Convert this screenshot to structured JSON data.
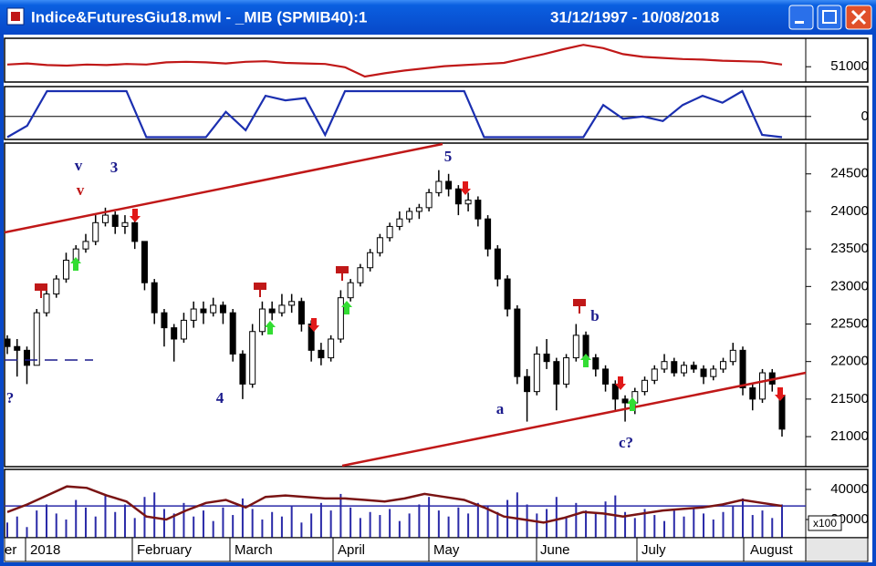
{
  "window": {
    "title": "Indice&FuturesGiu18.mwl - _MIB (SPMIB40):1",
    "date_range": "31/12/1997 - 10/08/2018"
  },
  "date_axis": [
    "er",
    "2018",
    "February",
    "March",
    "April",
    "May",
    "June",
    "July",
    "August"
  ],
  "chart_data": [
    {
      "type": "line",
      "color": "#c01818",
      "ylim": [
        48200,
        56200
      ],
      "yticks": [
        51000
      ],
      "values": [
        51400,
        51600,
        51300,
        51200,
        51400,
        51300,
        51500,
        51400,
        51800,
        51900,
        51800,
        51600,
        51900,
        52000,
        51700,
        51600,
        51500,
        50900,
        49200,
        49800,
        50300,
        50700,
        51100,
        51300,
        51500,
        51700,
        52500,
        53300,
        54200,
        55000,
        54400,
        53300,
        52800,
        52600,
        52400,
        52300,
        52100,
        52000,
        51900,
        51400
      ]
    },
    {
      "type": "line",
      "color": "#1b2fb0",
      "ylim": [
        -1,
        1.3
      ],
      "yticks": [
        0
      ],
      "grid": true,
      "values": [
        -0.9,
        -0.4,
        1.1,
        1.1,
        1.1,
        1.1,
        1.1,
        -0.9,
        -0.9,
        -0.9,
        -0.9,
        0.2,
        -0.6,
        0.9,
        0.7,
        0.8,
        -0.8,
        1.1,
        1.1,
        1.1,
        1.1,
        1.1,
        1.1,
        1.1,
        -0.9,
        -0.9,
        -0.9,
        -0.9,
        -0.9,
        -0.9,
        0.5,
        -0.1,
        0.0,
        -0.2,
        0.5,
        0.9,
        0.6,
        1.1,
        -0.8,
        -0.9
      ]
    },
    {
      "type": "candlestick",
      "ylim": [
        20600,
        24910
      ],
      "yticks": [
        24500,
        24000,
        23500,
        23000,
        22500,
        22000,
        21500,
        21000
      ],
      "candles": [
        [
          22300,
          22350,
          22100,
          22200
        ],
        [
          22200,
          22300,
          21800,
          22150
        ],
        [
          22150,
          22200,
          21700,
          21950
        ],
        [
          21950,
          22700,
          21950,
          22650
        ],
        [
          22650,
          22950,
          22600,
          22900
        ],
        [
          22900,
          23150,
          22850,
          23100
        ],
        [
          23100,
          23450,
          23050,
          23350
        ],
        [
          23350,
          23550,
          23300,
          23500
        ],
        [
          23500,
          23700,
          23450,
          23600
        ],
        [
          23600,
          23950,
          23550,
          23850
        ],
        [
          23850,
          24050,
          23800,
          23950
        ],
        [
          23950,
          24000,
          23700,
          23800
        ],
        [
          23800,
          23950,
          23700,
          23850
        ],
        [
          23850,
          23900,
          23500,
          23600
        ],
        [
          23600,
          23600,
          22950,
          23050
        ],
        [
          23050,
          23100,
          22500,
          22650
        ],
        [
          22650,
          22700,
          22200,
          22450
        ],
        [
          22450,
          22500,
          22000,
          22300
        ],
        [
          22300,
          22650,
          22250,
          22550
        ],
        [
          22550,
          22800,
          22450,
          22700
        ],
        [
          22700,
          22800,
          22500,
          22650
        ],
        [
          22650,
          22850,
          22600,
          22750
        ],
        [
          22750,
          22800,
          22500,
          22650
        ],
        [
          22650,
          22700,
          22000,
          22100
        ],
        [
          22100,
          22150,
          21500,
          21700
        ],
        [
          21700,
          22500,
          21650,
          22400
        ],
        [
          22400,
          22800,
          22350,
          22700
        ],
        [
          22700,
          22800,
          22550,
          22650
        ],
        [
          22650,
          22900,
          22600,
          22750
        ],
        [
          22750,
          22900,
          22650,
          22800
        ],
        [
          22800,
          22850,
          22400,
          22500
        ],
        [
          22500,
          22550,
          22000,
          22150
        ],
        [
          22150,
          22250,
          21950,
          22050
        ],
        [
          22050,
          22350,
          22000,
          22300
        ],
        [
          22300,
          22950,
          22250,
          22850
        ],
        [
          22850,
          23100,
          22800,
          23050
        ],
        [
          23050,
          23300,
          23000,
          23250
        ],
        [
          23250,
          23500,
          23200,
          23450
        ],
        [
          23450,
          23700,
          23400,
          23650
        ],
        [
          23650,
          23850,
          23600,
          23800
        ],
        [
          23800,
          24000,
          23750,
          23900
        ],
        [
          23900,
          24050,
          23850,
          24000
        ],
        [
          24000,
          24100,
          23900,
          24050
        ],
        [
          24050,
          24300,
          24000,
          24250
        ],
        [
          24250,
          24550,
          24200,
          24400
        ],
        [
          24400,
          24500,
          24200,
          24300
        ],
        [
          24300,
          24350,
          23950,
          24100
        ],
        [
          24100,
          24250,
          24000,
          24150
        ],
        [
          24150,
          24200,
          23800,
          23900
        ],
        [
          23900,
          23950,
          23400,
          23500
        ],
        [
          23500,
          23550,
          23000,
          23100
        ],
        [
          23100,
          23150,
          22600,
          22700
        ],
        [
          22700,
          22750,
          21700,
          21800
        ],
        [
          21800,
          21900,
          21200,
          21600
        ],
        [
          21600,
          22200,
          21550,
          22100
        ],
        [
          22100,
          22300,
          21900,
          22000
        ],
        [
          22000,
          22050,
          21350,
          21700
        ],
        [
          21700,
          22100,
          21650,
          22050
        ],
        [
          22050,
          22500,
          22000,
          22350
        ],
        [
          22350,
          22400,
          21950,
          22050
        ],
        [
          22050,
          22100,
          21800,
          21900
        ],
        [
          21900,
          21950,
          21600,
          21700
        ],
        [
          21700,
          21750,
          21350,
          21500
        ],
        [
          21500,
          21550,
          21200,
          21450
        ],
        [
          21450,
          21650,
          21300,
          21600
        ],
        [
          21600,
          21800,
          21550,
          21750
        ],
        [
          21750,
          21950,
          21700,
          21900
        ],
        [
          21900,
          22100,
          21850,
          22000
        ],
        [
          22000,
          22050,
          21800,
          21850
        ],
        [
          21850,
          22000,
          21800,
          21950
        ],
        [
          21950,
          22000,
          21850,
          21900
        ],
        [
          21900,
          21950,
          21700,
          21800
        ],
        [
          21800,
          21950,
          21750,
          21900
        ],
        [
          21900,
          22050,
          21850,
          22000
        ],
        [
          22000,
          22250,
          21950,
          22150
        ],
        [
          22150,
          22200,
          21550,
          21650
        ],
        [
          21650,
          21700,
          21350,
          21500
        ],
        [
          21500,
          21900,
          21450,
          21850
        ],
        [
          21850,
          21900,
          21600,
          21700
        ],
        [
          21550,
          21600,
          21000,
          21100
        ]
      ],
      "annotations": [
        {
          "text": "v",
          "color": "#1a1a8c"
        },
        {
          "text": "v",
          "color": "#c01818"
        },
        {
          "text": "3",
          "color": "#1a1a8c"
        },
        {
          "text": "5",
          "color": "#1a1a8c"
        },
        {
          "text": "4",
          "color": "#1a1a8c"
        },
        {
          "text": "a",
          "color": "#1a1a8c"
        },
        {
          "text": "b",
          "color": "#1a1a8c"
        },
        {
          "text": "c?",
          "color": "#1a1a8c"
        },
        {
          "text": "?",
          "color": "#1a1a8c"
        }
      ]
    },
    {
      "type": "volume",
      "color": "#2a2aa8",
      "ylim": [
        7900,
        53300
      ],
      "yticks": [
        40000,
        20000
      ],
      "unit_label": "x100",
      "ref_line": 29000,
      "ref_color": "#2a2aa8",
      "values": [
        18000,
        22000,
        15000,
        26000,
        30000,
        24000,
        20000,
        33000,
        28000,
        22000,
        36000,
        25000,
        30000,
        21000,
        35000,
        38000,
        27000,
        24000,
        31000,
        22000,
        26000,
        19000,
        28000,
        23000,
        34000,
        27000,
        20000,
        25000,
        22000,
        29000,
        18000,
        24000,
        31000,
        26000,
        37000,
        28000,
        21000,
        25000,
        23000,
        27000,
        19000,
        24000,
        30000,
        35000,
        26000,
        22000,
        28000,
        24000,
        31000,
        29000,
        25000,
        33000,
        38000,
        30000,
        24000,
        27000,
        35000,
        22000,
        31000,
        26000,
        24000,
        32000,
        36000,
        25000,
        21000,
        27000,
        23000,
        19000,
        26000,
        22000,
        28000,
        24000,
        20000,
        25000,
        29000,
        34000,
        23000,
        26000,
        21000,
        30000
      ],
      "line": {
        "color": "#7a1414",
        "values": [
          25000,
          30000,
          36000,
          42000,
          41000,
          36000,
          32000,
          22000,
          20000,
          26000,
          31000,
          33000,
          28000,
          35000,
          36000,
          35000,
          34000,
          34000,
          33000,
          32000,
          34000,
          37000,
          35000,
          33000,
          28000,
          22000,
          20000,
          18000,
          21000,
          25000,
          24000,
          22000,
          24000,
          26000,
          27000,
          28000,
          30000,
          33000,
          31000,
          29000
        ]
      }
    }
  ]
}
